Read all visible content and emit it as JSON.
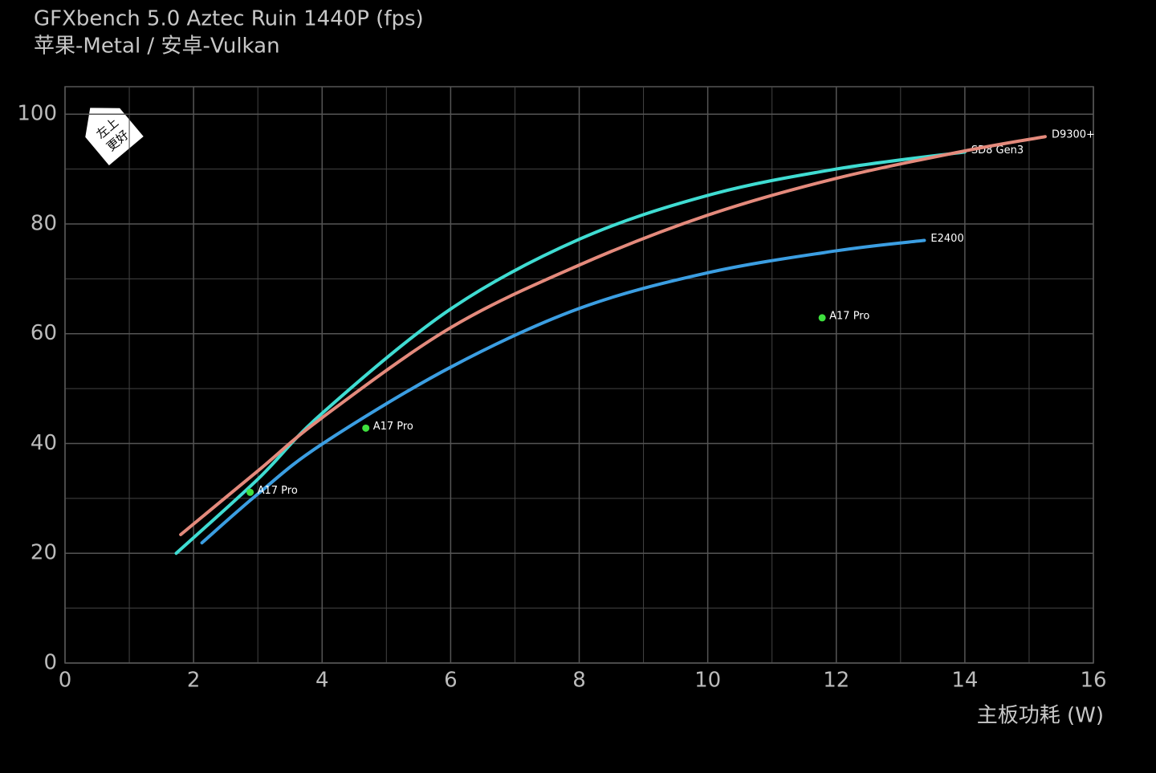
{
  "chart_data": {
    "type": "line",
    "title": "GFXbench 5.0 Aztec Ruin 1440P (fps)",
    "subtitle": "苹果-Metal / 安卓-Vulkan",
    "x_label": "主板功耗 (W)",
    "annotation": [
      "左上",
      "更好"
    ],
    "xlim": [
      0,
      16
    ],
    "ylim": [
      0,
      105
    ],
    "xticks": [
      0,
      2,
      4,
      6,
      8,
      10,
      12,
      14,
      16
    ],
    "yticks": [
      0,
      20,
      40,
      60,
      80,
      100
    ],
    "x_minor_grid": [
      1,
      3,
      5,
      7,
      9,
      11,
      13,
      15
    ],
    "y_minor_grid": [
      10,
      30,
      50,
      70,
      90
    ],
    "grid": true,
    "series": [
      {
        "name": "SD8 Gen3",
        "color": "#3fdcd2",
        "x": [
          1.73,
          3,
          4,
          6,
          8,
          10,
          12,
          14
        ],
        "values": [
          20,
          33.5,
          45.5,
          64.5,
          77.2,
          85.2,
          90,
          93.1
        ]
      },
      {
        "name": "D9300+",
        "color": "#e48a7c",
        "x": [
          1.8,
          3,
          4,
          6,
          8,
          10,
          12,
          14,
          15.25
        ],
        "values": [
          23.4,
          35,
          44.7,
          61.1,
          72.5,
          81.6,
          88.3,
          93.3,
          95.9
        ]
      },
      {
        "name": "E2400",
        "color": "#3b9ee2",
        "x": [
          2.13,
          3,
          4,
          6,
          8,
          10,
          12,
          13.37
        ],
        "values": [
          21.9,
          30.8,
          39.9,
          53.9,
          64.6,
          71.1,
          75.1,
          77.0
        ]
      }
    ],
    "points": {
      "name": "A17 Pro",
      "color": "#3ee03e",
      "x": [
        2.88,
        4.68,
        11.78
      ],
      "values": [
        31.1,
        42.8,
        62.9
      ]
    }
  }
}
